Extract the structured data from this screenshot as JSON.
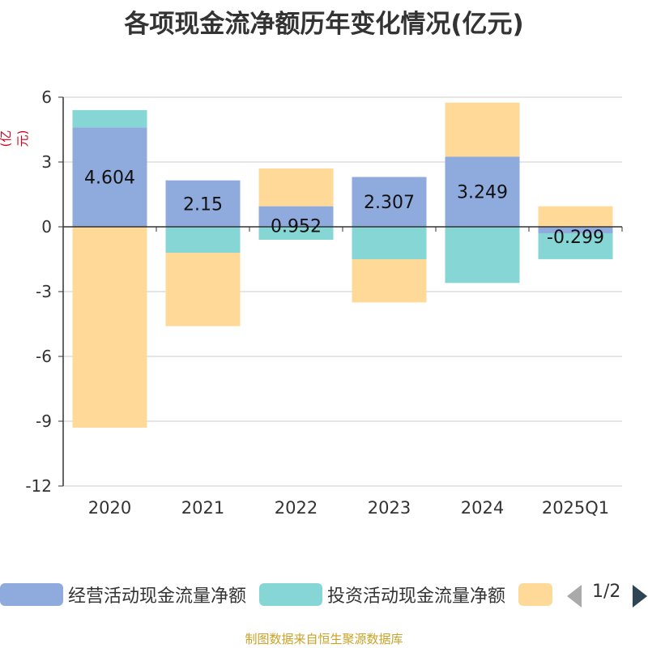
{
  "chart_data": {
    "type": "bar",
    "stacked": true,
    "title": "各项现金流净额历年变化情况(亿元)",
    "ylabel": "(亿元)",
    "ylim": [
      -12,
      6
    ],
    "yticks": [
      6,
      3,
      0,
      -3,
      -6,
      -9,
      -12
    ],
    "categories": [
      "2020",
      "2021",
      "2022",
      "2023",
      "2024",
      "2025Q1"
    ],
    "series": [
      {
        "name": "经营活动现金流量净额",
        "color": "#8faadc",
        "values": [
          4.604,
          2.15,
          0.952,
          2.307,
          3.249,
          -0.299
        ],
        "labels": [
          "4.604",
          "2.15",
          "0.952",
          "2.307",
          "3.249",
          "-0.299"
        ]
      },
      {
        "name": "投资活动现金流量净额",
        "color": "#87d6d6",
        "values": [
          0.8,
          -1.2,
          -0.6,
          -1.5,
          -2.6,
          -1.2
        ]
      },
      {
        "name": "",
        "color": "#ffd998",
        "values": [
          -9.3,
          -3.4,
          1.75,
          -2.0,
          2.5,
          0.95
        ]
      }
    ],
    "grid": true,
    "legend_position": "bottom"
  },
  "legend": {
    "items": [
      "经营活动现金流量净额",
      "投资活动现金流量净额",
      ""
    ],
    "page": "1/2"
  },
  "footer": "制图数据来自恒生聚源数据库"
}
